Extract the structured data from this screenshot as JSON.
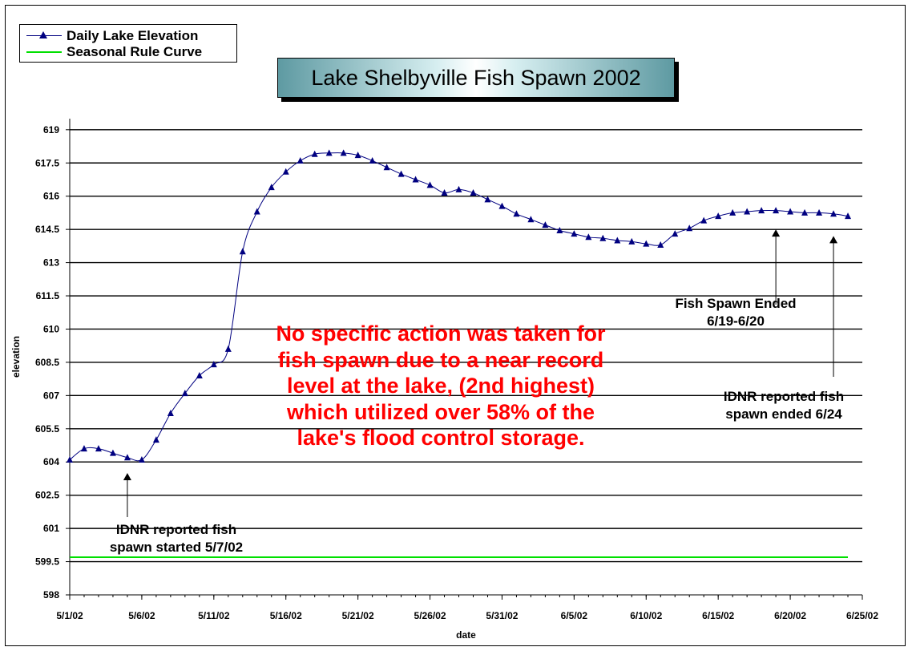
{
  "chart_data": {
    "type": "line",
    "title": "Lake Shelbyville Fish Spawn 2002",
    "xlabel": "date",
    "ylabel": "elevation",
    "ylim": [
      598,
      619.5
    ],
    "yticks": [
      598,
      599.5,
      601,
      602.5,
      604,
      605.5,
      607,
      608.5,
      610,
      611.5,
      613,
      614.5,
      616,
      617.5,
      619
    ],
    "ytick_labels": [
      "598",
      "599.5",
      "601",
      "602.5",
      "604",
      "605.5",
      "607",
      "608.5",
      "610",
      "611.5",
      "613",
      "614.5",
      "616",
      "617.5",
      "619"
    ],
    "xlim": [
      "2002-05-01",
      "2002-06-25"
    ],
    "xticks": [
      "2002-05-01",
      "2002-05-06",
      "2002-05-11",
      "2002-05-16",
      "2002-05-21",
      "2002-05-26",
      "2002-05-31",
      "2002-06-05",
      "2002-06-10",
      "2002-06-15",
      "2002-06-20",
      "2002-06-25"
    ],
    "xtick_labels": [
      "5/1/02",
      "5/6/02",
      "5/11/02",
      "5/16/02",
      "5/21/02",
      "5/26/02",
      "5/31/02",
      "6/5/02",
      "6/10/02",
      "6/15/02",
      "6/20/02",
      "6/25/02"
    ],
    "grid": "horizontal major gridlines",
    "legend_position": "top-left",
    "series": [
      {
        "name": "Daily Lake Elevation",
        "color": "#000080",
        "marker": "triangle",
        "x": [
          "2002-05-01",
          "2002-05-02",
          "2002-05-03",
          "2002-05-04",
          "2002-05-05",
          "2002-05-06",
          "2002-05-07",
          "2002-05-08",
          "2002-05-09",
          "2002-05-10",
          "2002-05-11",
          "2002-05-12",
          "2002-05-13",
          "2002-05-14",
          "2002-05-15",
          "2002-05-16",
          "2002-05-17",
          "2002-05-18",
          "2002-05-19",
          "2002-05-20",
          "2002-05-21",
          "2002-05-22",
          "2002-05-23",
          "2002-05-24",
          "2002-05-25",
          "2002-05-26",
          "2002-05-27",
          "2002-05-28",
          "2002-05-29",
          "2002-05-30",
          "2002-05-31",
          "2002-06-01",
          "2002-06-02",
          "2002-06-03",
          "2002-06-04",
          "2002-06-05",
          "2002-06-06",
          "2002-06-07",
          "2002-06-08",
          "2002-06-09",
          "2002-06-10",
          "2002-06-11",
          "2002-06-12",
          "2002-06-13",
          "2002-06-14",
          "2002-06-15",
          "2002-06-16",
          "2002-06-17",
          "2002-06-18",
          "2002-06-19",
          "2002-06-20",
          "2002-06-21",
          "2002-06-22",
          "2002-06-23",
          "2002-06-24"
        ],
        "values": [
          604.1,
          604.6,
          604.6,
          604.4,
          604.2,
          604.1,
          605.0,
          606.2,
          607.1,
          607.9,
          608.4,
          609.1,
          613.5,
          615.3,
          616.4,
          617.1,
          617.6,
          617.9,
          617.95,
          617.95,
          617.85,
          617.6,
          617.3,
          617.0,
          616.75,
          616.5,
          616.15,
          616.3,
          616.15,
          615.85,
          615.55,
          615.2,
          614.95,
          614.7,
          614.45,
          614.3,
          614.15,
          614.1,
          614.0,
          613.95,
          613.85,
          613.8,
          614.3,
          614.55,
          614.9,
          615.1,
          615.25,
          615.3,
          615.35,
          615.35,
          615.3,
          615.25,
          615.25,
          615.2,
          615.1
        ]
      },
      {
        "name": "Seasonal Rule Curve",
        "color": "#00e000",
        "x": [
          "2002-05-01",
          "2002-06-24"
        ],
        "values": [
          599.7,
          599.7
        ]
      }
    ],
    "annotations": [
      {
        "id": "spawn-start",
        "lines": [
          "IDNR reported fish",
          "spawn started 5/7/02"
        ],
        "arrow_to": {
          "x": "2002-05-05",
          "y": 603.5
        }
      },
      {
        "id": "spawn-ended",
        "lines": [
          "Fish Spawn Ended",
          "6/19-6/20"
        ],
        "arrow_to": {
          "x": "2002-06-19",
          "y": 614.5
        }
      },
      {
        "id": "idnr-ended",
        "lines": [
          "IDNR reported fish",
          "spawn ended 6/24"
        ],
        "arrow_to": {
          "x": "2002-06-23",
          "y": 614.2
        }
      }
    ],
    "note": [
      "No specific action was taken for",
      "fish spawn due to a near record",
      "level at the lake, (2nd highest)",
      "which utilized over 58% of the",
      "lake's flood control storage."
    ]
  }
}
